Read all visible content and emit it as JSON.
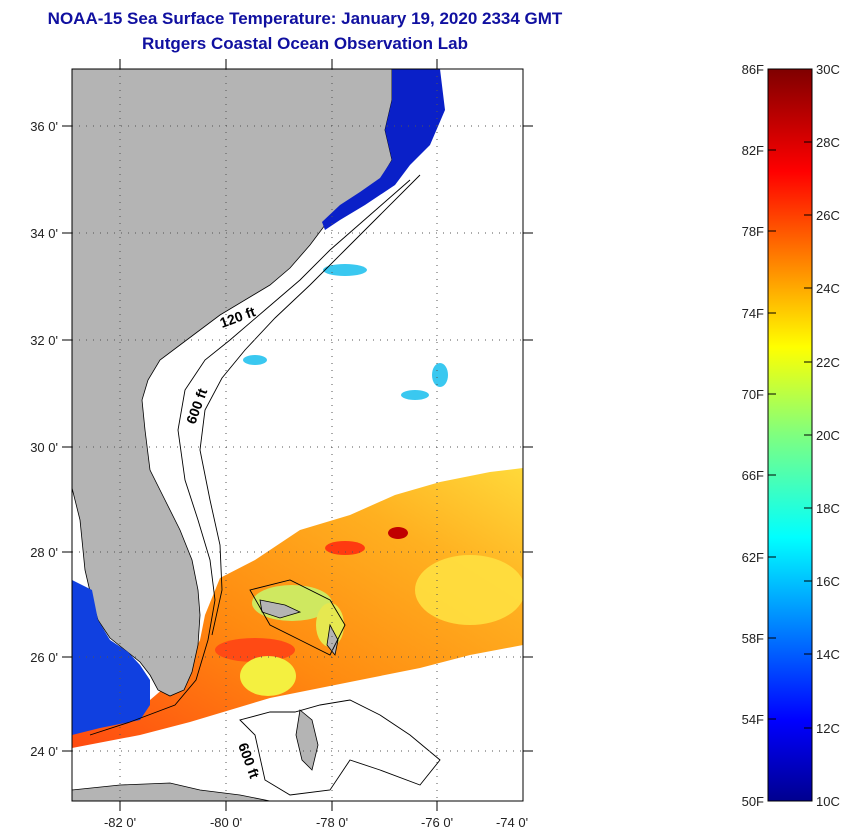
{
  "title": {
    "line1": "NOAA-15 Sea Surface Temperature:  January 19, 2020 2334 GMT",
    "line2": "Rutgers Coastal Ocean Observation Lab"
  },
  "map": {
    "lat_labels": [
      "36 0'",
      "34 0'",
      "32 0'",
      "30 0'",
      "28 0'",
      "26 0'",
      "24 0'"
    ],
    "lon_labels": [
      "-82 0'",
      "-80 0'",
      "-78 0'",
      "-76 0'",
      "-74 0'"
    ],
    "contours": [
      "120 ft",
      "600 ft",
      "600 ft"
    ],
    "colors": {
      "land": "#b4b4b4",
      "frame": "#000000",
      "grid": "#555555",
      "title": "#1010a0"
    }
  },
  "colorbar": {
    "f_labels": [
      "86F",
      "82F",
      "78F",
      "74F",
      "70F",
      "66F",
      "62F",
      "58F",
      "54F",
      "50F"
    ],
    "c_labels": [
      "30C",
      "28C",
      "26C",
      "24C",
      "22C",
      "20C",
      "18C",
      "16C",
      "14C",
      "12C",
      "10C"
    ],
    "range_f": [
      50,
      86
    ],
    "range_c": [
      10,
      30
    ],
    "colormap": "jet"
  }
}
